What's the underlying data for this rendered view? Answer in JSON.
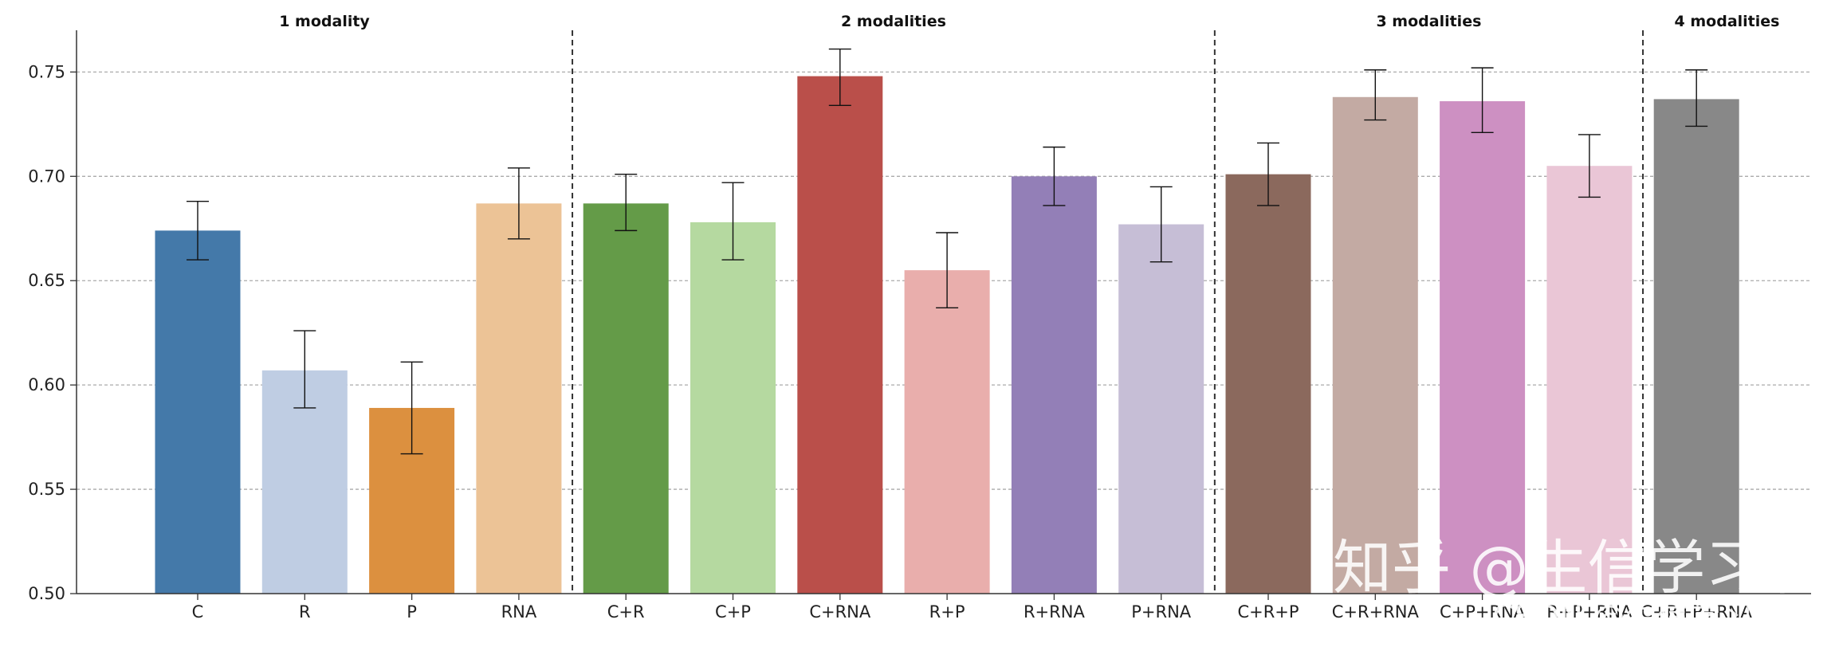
{
  "chart_data": {
    "type": "bar",
    "title": "",
    "xlabel": "",
    "ylabel": "",
    "ylim": [
      0.5,
      0.77
    ],
    "yticks": [
      0.5,
      0.55,
      0.6,
      0.65,
      0.7,
      0.75
    ],
    "ytick_labels": [
      "0.50",
      "0.55",
      "0.60",
      "0.65",
      "0.70",
      "0.75"
    ],
    "grid": "horizontal dashed",
    "categories": [
      "C",
      "R",
      "P",
      "RNA",
      "C+R",
      "C+P",
      "C+RNA",
      "R+P",
      "R+RNA",
      "P+RNA",
      "C+R+P",
      "C+R+RNA",
      "C+P+RNA",
      "R+P+RNA",
      "C+R+P+RNA"
    ],
    "values": [
      0.674,
      0.607,
      0.589,
      0.687,
      0.687,
      0.678,
      0.748,
      0.655,
      0.7,
      0.677,
      0.701,
      0.738,
      0.736,
      0.705,
      0.737
    ],
    "error_low": [
      0.66,
      0.589,
      0.567,
      0.67,
      0.674,
      0.66,
      0.734,
      0.637,
      0.686,
      0.659,
      0.686,
      0.727,
      0.721,
      0.69,
      0.724
    ],
    "error_high": [
      0.688,
      0.626,
      0.611,
      0.704,
      0.701,
      0.697,
      0.761,
      0.673,
      0.714,
      0.695,
      0.716,
      0.751,
      0.752,
      0.72,
      0.751
    ],
    "colors": [
      "#4479a9",
      "#bfcde3",
      "#dc903f",
      "#ecc396",
      "#649b48",
      "#b5d9a0",
      "#ba4f4a",
      "#e9aeac",
      "#937fb7",
      "#c6bed6",
      "#8b695d",
      "#c3aaa3",
      "#cd90c2",
      "#eac6d6",
      "#888888"
    ],
    "groups": [
      {
        "label": "1 modality",
        "start": 0,
        "end": 3
      },
      {
        "label": "2 modalities",
        "start": 4,
        "end": 9
      },
      {
        "label": "3 modalities",
        "start": 10,
        "end": 13
      },
      {
        "label": "4 modalities",
        "start": 14,
        "end": 14
      }
    ]
  },
  "watermark": {
    "zhihu": "知乎 @生信学习者",
    "csdn": "CSDN @生信学习者1"
  }
}
